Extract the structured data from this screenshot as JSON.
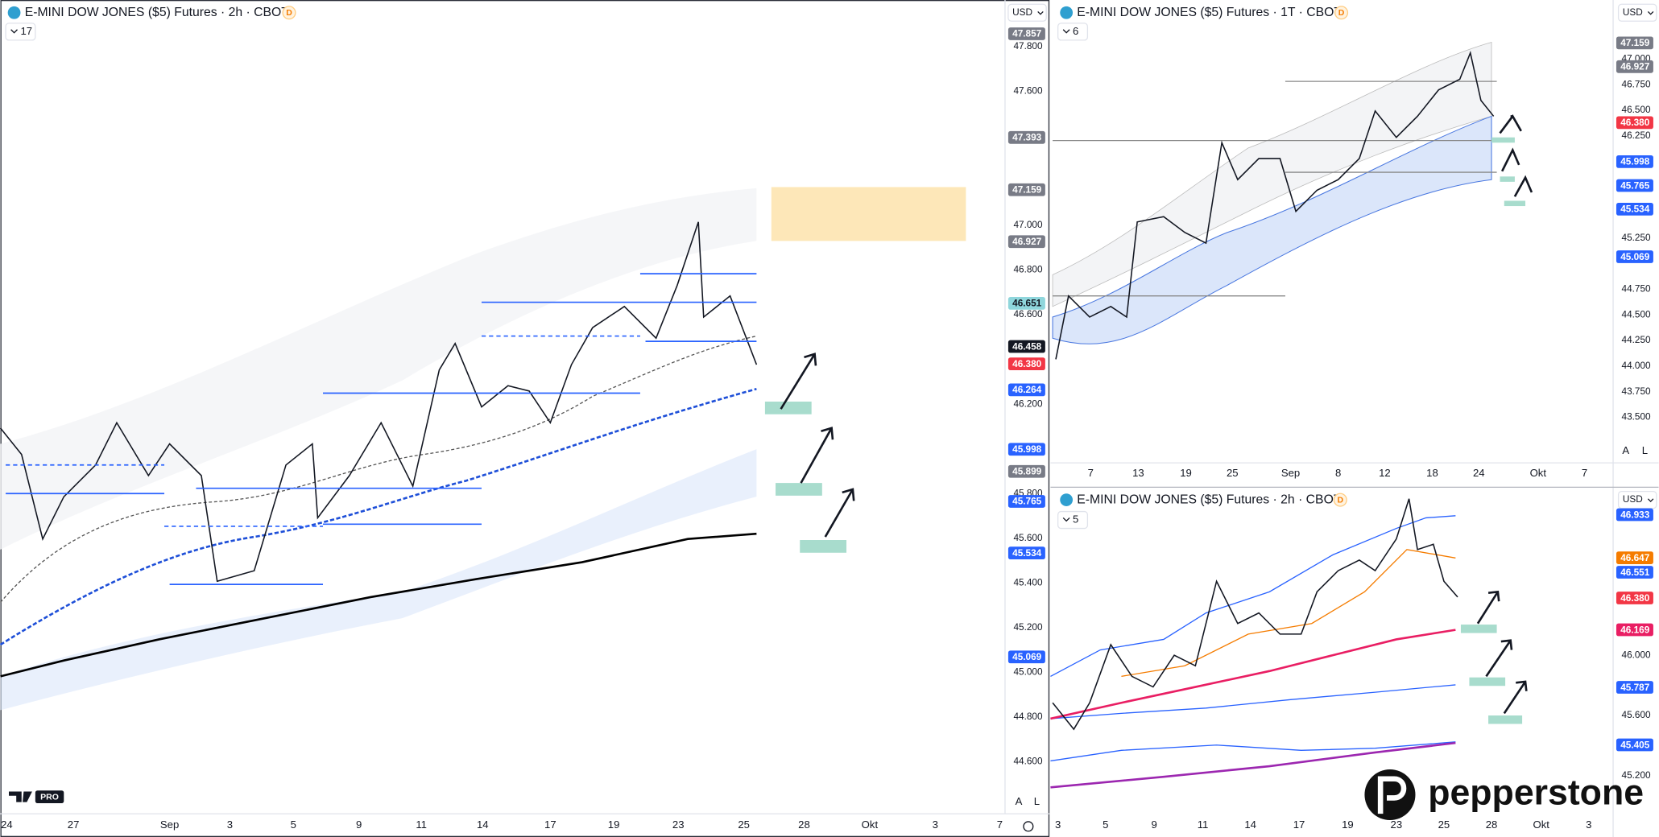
{
  "panels": [
    {
      "title": "E-MINI DOW JONES ($5) Futures · 2h · CBOT",
      "flag": "D",
      "currency": "USD",
      "indicators": "17",
      "price_labels": [
        "47.800",
        "47.600",
        "47.000",
        "46.800",
        "46.600",
        "46.200",
        "45.800",
        "45.600",
        "45.400",
        "45.200",
        "45.000",
        "44.800",
        "44.600"
      ],
      "price_badges": [
        {
          "label": "47.857",
          "color": "#787b86"
        },
        {
          "label": "47.393",
          "color": "#787b86"
        },
        {
          "label": "47.159",
          "color": "#787b86"
        },
        {
          "label": "46.927",
          "color": "#787b86"
        },
        {
          "label": "46.651",
          "color": "#8fd6dc"
        },
        {
          "label": "46.458",
          "color": "#131722"
        },
        {
          "label": "46.380",
          "color": "#f23645"
        },
        {
          "label": "46.264",
          "color": "#2962ff"
        },
        {
          "label": "45.998",
          "color": "#2962ff"
        },
        {
          "label": "45.899",
          "color": "#787b86"
        },
        {
          "label": "45.765",
          "color": "#2962ff"
        },
        {
          "label": "45.534",
          "color": "#2962ff"
        },
        {
          "label": "45.069",
          "color": "#2962ff"
        }
      ],
      "dates": [
        "24",
        "27",
        "Sep",
        "3",
        "5",
        "9",
        "11",
        "14",
        "17",
        "19",
        "23",
        "25",
        "28",
        "Okt",
        "3",
        "7"
      ],
      "scale_buttons": [
        "A",
        "L"
      ]
    },
    {
      "title": "E-MINI DOW JONES ($5) Futures · 1T · CBOT",
      "flag": "D",
      "currency": "USD",
      "indicators": "6",
      "price_labels": [
        "47.000",
        "46.750",
        "46.500",
        "46.250",
        "45.250",
        "44.750",
        "44.500",
        "44.250",
        "44.000",
        "43.750",
        "43.500"
      ],
      "price_badges": [
        {
          "label": "47.159",
          "color": "#787b86"
        },
        {
          "label": "46.927",
          "color": "#787b86"
        },
        {
          "label": "46.380",
          "color": "#f23645"
        },
        {
          "label": "45.998",
          "color": "#2962ff"
        },
        {
          "label": "45.765",
          "color": "#2962ff"
        },
        {
          "label": "45.534",
          "color": "#2962ff"
        },
        {
          "label": "45.069",
          "color": "#2962ff"
        }
      ],
      "dates": [
        "7",
        "13",
        "19",
        "25",
        "Sep",
        "8",
        "12",
        "18",
        "24",
        "Okt",
        "7"
      ],
      "scale_buttons": [
        "A",
        "L"
      ]
    },
    {
      "title": "E-MINI DOW JONES ($5) Futures · 2h · CBOT",
      "flag": "D",
      "currency": "USD",
      "indicators": "5",
      "price_labels": [
        "46.000",
        "45.600",
        "45.200"
      ],
      "price_badges": [
        {
          "label": "46.933",
          "color": "#2962ff"
        },
        {
          "label": "46.647",
          "color": "#f57c00"
        },
        {
          "label": "46.551",
          "color": "#2962ff"
        },
        {
          "label": "46.380",
          "color": "#f23645"
        },
        {
          "label": "46.169",
          "color": "#e91e63"
        },
        {
          "label": "45.787",
          "color": "#2962ff"
        },
        {
          "label": "45.405",
          "color": "#2962ff"
        }
      ],
      "dates": [
        "3",
        "5",
        "9",
        "11",
        "14",
        "17",
        "19",
        "23",
        "25",
        "28",
        "Okt",
        "3"
      ],
      "scale_buttons": []
    }
  ],
  "branding": {
    "tv": "PRO",
    "broker": "pepperstone"
  }
}
